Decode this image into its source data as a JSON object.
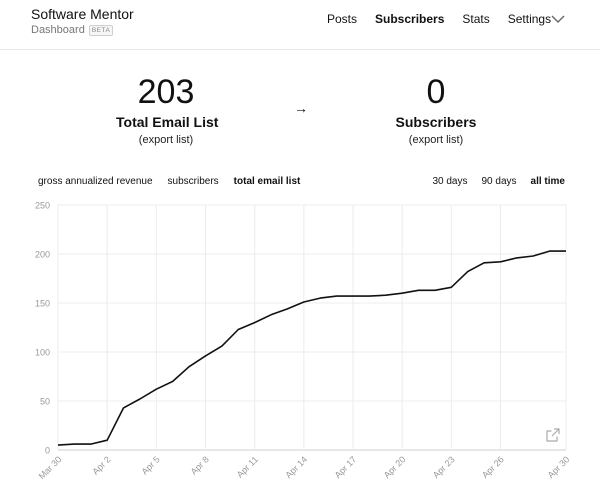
{
  "header": {
    "title": "Software Mentor",
    "subtitle": "Dashboard",
    "badge": "BETA",
    "nav": [
      {
        "label": "Posts",
        "active": false
      },
      {
        "label": "Subscribers",
        "active": true
      },
      {
        "label": "Stats",
        "active": false
      },
      {
        "label": "Settings",
        "active": false
      }
    ],
    "menu_icon": "chevron-down-icon"
  },
  "stats": {
    "left": {
      "value": "203",
      "label": "Total Email List",
      "link": "(export list)"
    },
    "arrow": "→",
    "right": {
      "value": "0",
      "label": "Subscribers",
      "link": "(export list)"
    }
  },
  "metrics": [
    {
      "label": "gross annualized revenue",
      "active": false
    },
    {
      "label": "subscribers",
      "active": false
    },
    {
      "label": "total email list",
      "active": true
    }
  ],
  "ranges": [
    {
      "label": "30 days",
      "active": false
    },
    {
      "label": "90 days",
      "active": false
    },
    {
      "label": "all time",
      "active": true
    }
  ],
  "popout_icon": "external-link-icon",
  "chart_data": {
    "type": "line",
    "title": "",
    "xlabel": "",
    "ylabel": "",
    "ylim": [
      0,
      250
    ],
    "yticks": [
      0,
      50,
      100,
      150,
      200,
      250
    ],
    "grid": true,
    "line_color": "#111111",
    "x": [
      "Mar 30",
      "Mar 31",
      "Apr 1",
      "Apr 2",
      "Apr 3",
      "Apr 4",
      "Apr 5",
      "Apr 6",
      "Apr 7",
      "Apr 8",
      "Apr 9",
      "Apr 10",
      "Apr 11",
      "Apr 12",
      "Apr 13",
      "Apr 14",
      "Apr 15",
      "Apr 16",
      "Apr 17",
      "Apr 18",
      "Apr 19",
      "Apr 20",
      "Apr 21",
      "Apr 22",
      "Apr 23",
      "Apr 24",
      "Apr 25",
      "Apr 26",
      "Apr 27",
      "Apr 28",
      "Apr 29",
      "Apr 30"
    ],
    "xtick_labels": [
      "Mar 30",
      "Apr 2",
      "Apr 5",
      "Apr 8",
      "Apr 11",
      "Apr 14",
      "Apr 17",
      "Apr 20",
      "Apr 23",
      "Apr 26",
      "Apr 30"
    ],
    "series": [
      {
        "values": [
          5,
          6,
          6,
          10,
          43,
          52,
          62,
          70,
          85,
          96,
          106,
          123,
          130,
          138,
          144,
          151,
          155,
          157,
          157,
          157,
          158,
          160,
          163,
          163,
          166,
          182,
          191,
          192,
          196,
          198,
          203,
          203
        ]
      }
    ]
  }
}
